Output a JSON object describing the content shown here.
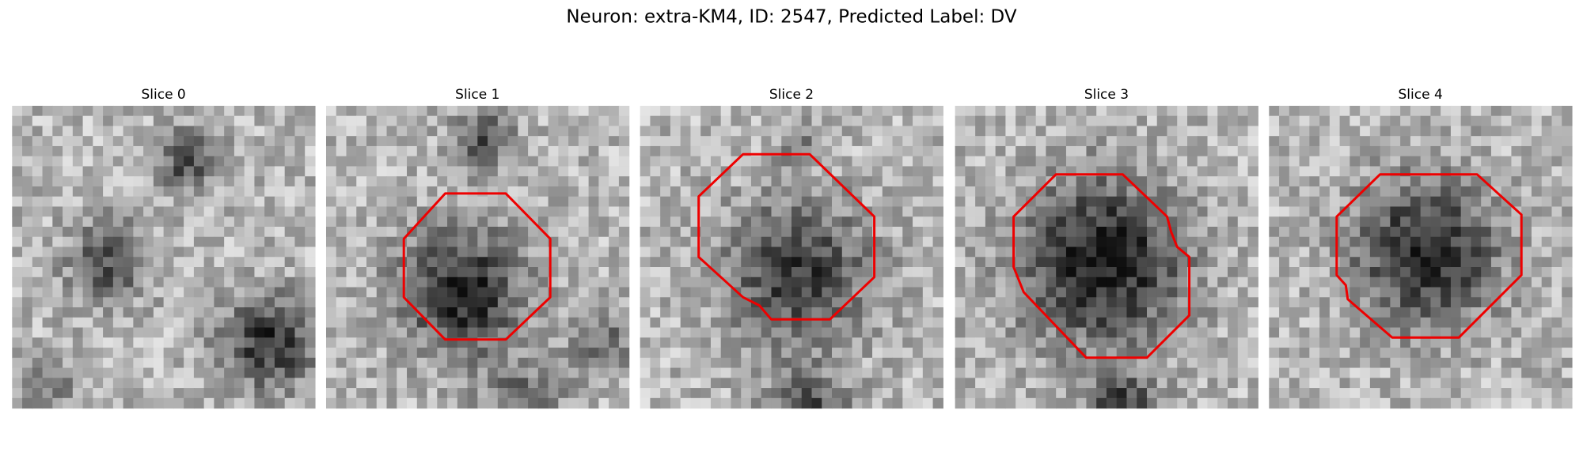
{
  "title": "Neuron: extra-KM4, ID: 2547, Predicted Label: DV",
  "panels": [
    {
      "title": "Slice 0"
    },
    {
      "title": "Slice 1"
    },
    {
      "title": "Slice 2"
    },
    {
      "title": "Slice 3"
    },
    {
      "title": "Slice 4"
    }
  ]
}
